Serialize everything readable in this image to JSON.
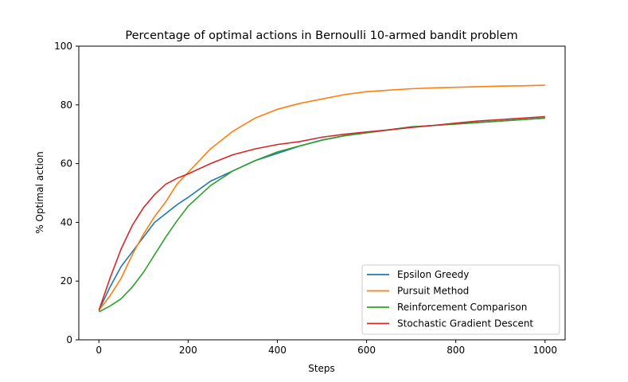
{
  "chart_data": {
    "type": "line",
    "title": "Percentage of optimal actions in Bernoulli 10-armed bandit problem",
    "xlabel": "Steps",
    "ylabel": "% Optimal action",
    "xlim": [
      -45,
      1045
    ],
    "ylim": [
      0,
      100
    ],
    "xticks": [
      0,
      200,
      400,
      600,
      800,
      1000
    ],
    "yticks": [
      0,
      20,
      40,
      60,
      80,
      100
    ],
    "grid": false,
    "legend_position": "lower-right",
    "x": [
      0,
      25,
      50,
      75,
      100,
      125,
      150,
      175,
      200,
      250,
      300,
      350,
      400,
      450,
      500,
      550,
      600,
      650,
      700,
      750,
      800,
      850,
      900,
      950,
      1000
    ],
    "series": [
      {
        "name": "Epsilon Greedy",
        "color": "#1f77b4",
        "values": [
          10,
          18,
          25,
          30,
          35,
          40,
          43,
          46,
          48.5,
          54,
          57.5,
          61,
          63.5,
          66,
          68,
          69.5,
          70.5,
          71.5,
          72.5,
          73,
          73.5,
          74,
          74.5,
          75,
          75.5
        ]
      },
      {
        "name": "Pursuit Method",
        "color": "#ff7f0e",
        "values": [
          10,
          15,
          21,
          29,
          36,
          42,
          47,
          53,
          57,
          65,
          71,
          75.5,
          78.5,
          80.5,
          82,
          83.5,
          84.5,
          85,
          85.5,
          85.8,
          86,
          86.2,
          86.4,
          86.5,
          86.7
        ]
      },
      {
        "name": "Reinforcement Comparison",
        "color": "#2ca02c",
        "values": [
          9.5,
          11.5,
          14,
          18,
          23,
          29,
          35,
          40.5,
          45.5,
          52.5,
          57.5,
          61,
          64,
          66,
          68,
          69.5,
          70.5,
          71.5,
          72.5,
          73,
          73.5,
          74,
          74.5,
          75,
          75.5
        ]
      },
      {
        "name": "Stochastic Gradient Descent",
        "color": "#d62728",
        "values": [
          10,
          21,
          31,
          39,
          45,
          49.5,
          53,
          55,
          56.5,
          60,
          63,
          65,
          66.5,
          67.5,
          69,
          70,
          70.8,
          71.5,
          72.3,
          73,
          73.8,
          74.5,
          75,
          75.5,
          76
        ]
      }
    ]
  }
}
